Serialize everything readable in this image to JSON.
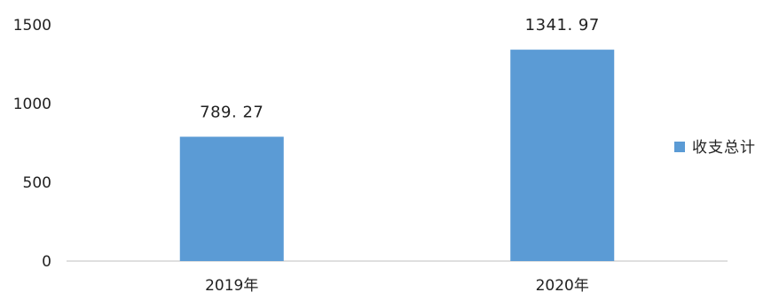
{
  "chart_data": {
    "type": "bar",
    "categories": [
      "2019年",
      "2020年"
    ],
    "series": [
      {
        "name": "收支总计",
        "values": [
          789.27,
          1341.97
        ],
        "data_labels": [
          "789. 27",
          "1341. 97"
        ],
        "color": "#5B9BD5"
      }
    ],
    "title": "",
    "xlabel": "",
    "ylabel": "",
    "ylim": [
      0,
      1500
    ],
    "yticks": [
      0,
      500,
      1000,
      1500
    ],
    "ytick_labels": [
      "0",
      "500",
      "1000",
      "1500"
    ],
    "grid": false,
    "legend": {
      "position": "right"
    },
    "axis_color": "#bfbfbf"
  }
}
